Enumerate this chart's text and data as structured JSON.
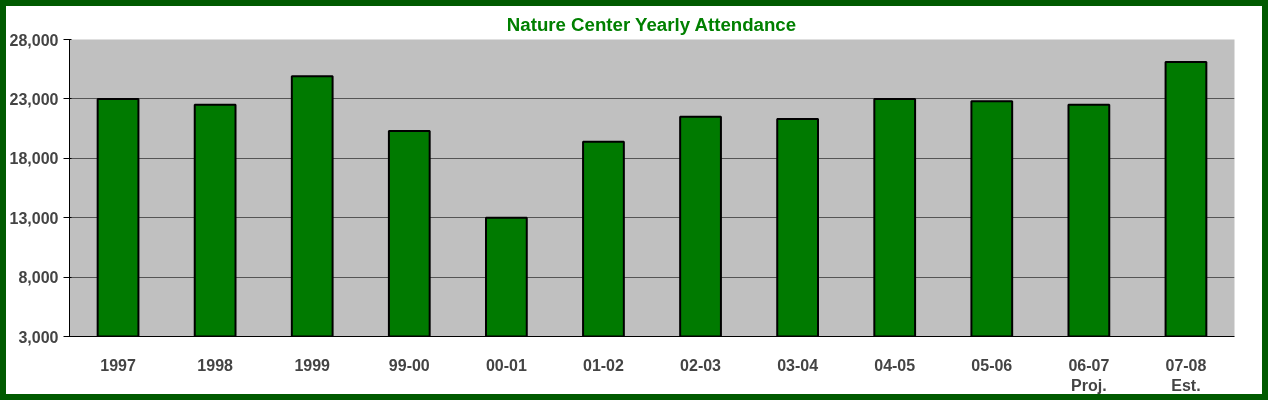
{
  "chart_data": {
    "type": "bar",
    "title": "Nature Center Yearly Attendance",
    "categories": [
      "1997",
      "1998",
      "1999",
      "99-00",
      "00-01",
      "01-02",
      "02-03",
      "03-04",
      "04-05",
      "05-06",
      "06-07\nProj.",
      "07-08\nEst."
    ],
    "values": [
      23000,
      22500,
      24900,
      20300,
      13000,
      19400,
      21500,
      21300,
      23000,
      22800,
      22500,
      26100
    ],
    "color": "#007a00",
    "ylim": [
      3000,
      28000
    ],
    "yticks": [
      {
        "value": 3000,
        "label": "3,000"
      },
      {
        "value": 8000,
        "label": "8,000"
      },
      {
        "value": 13000,
        "label": "13,000"
      },
      {
        "value": 18000,
        "label": "18,000"
      },
      {
        "value": 23000,
        "label": "23,000"
      },
      {
        "value": 28000,
        "label": "28,000"
      }
    ],
    "grid": "y"
  }
}
